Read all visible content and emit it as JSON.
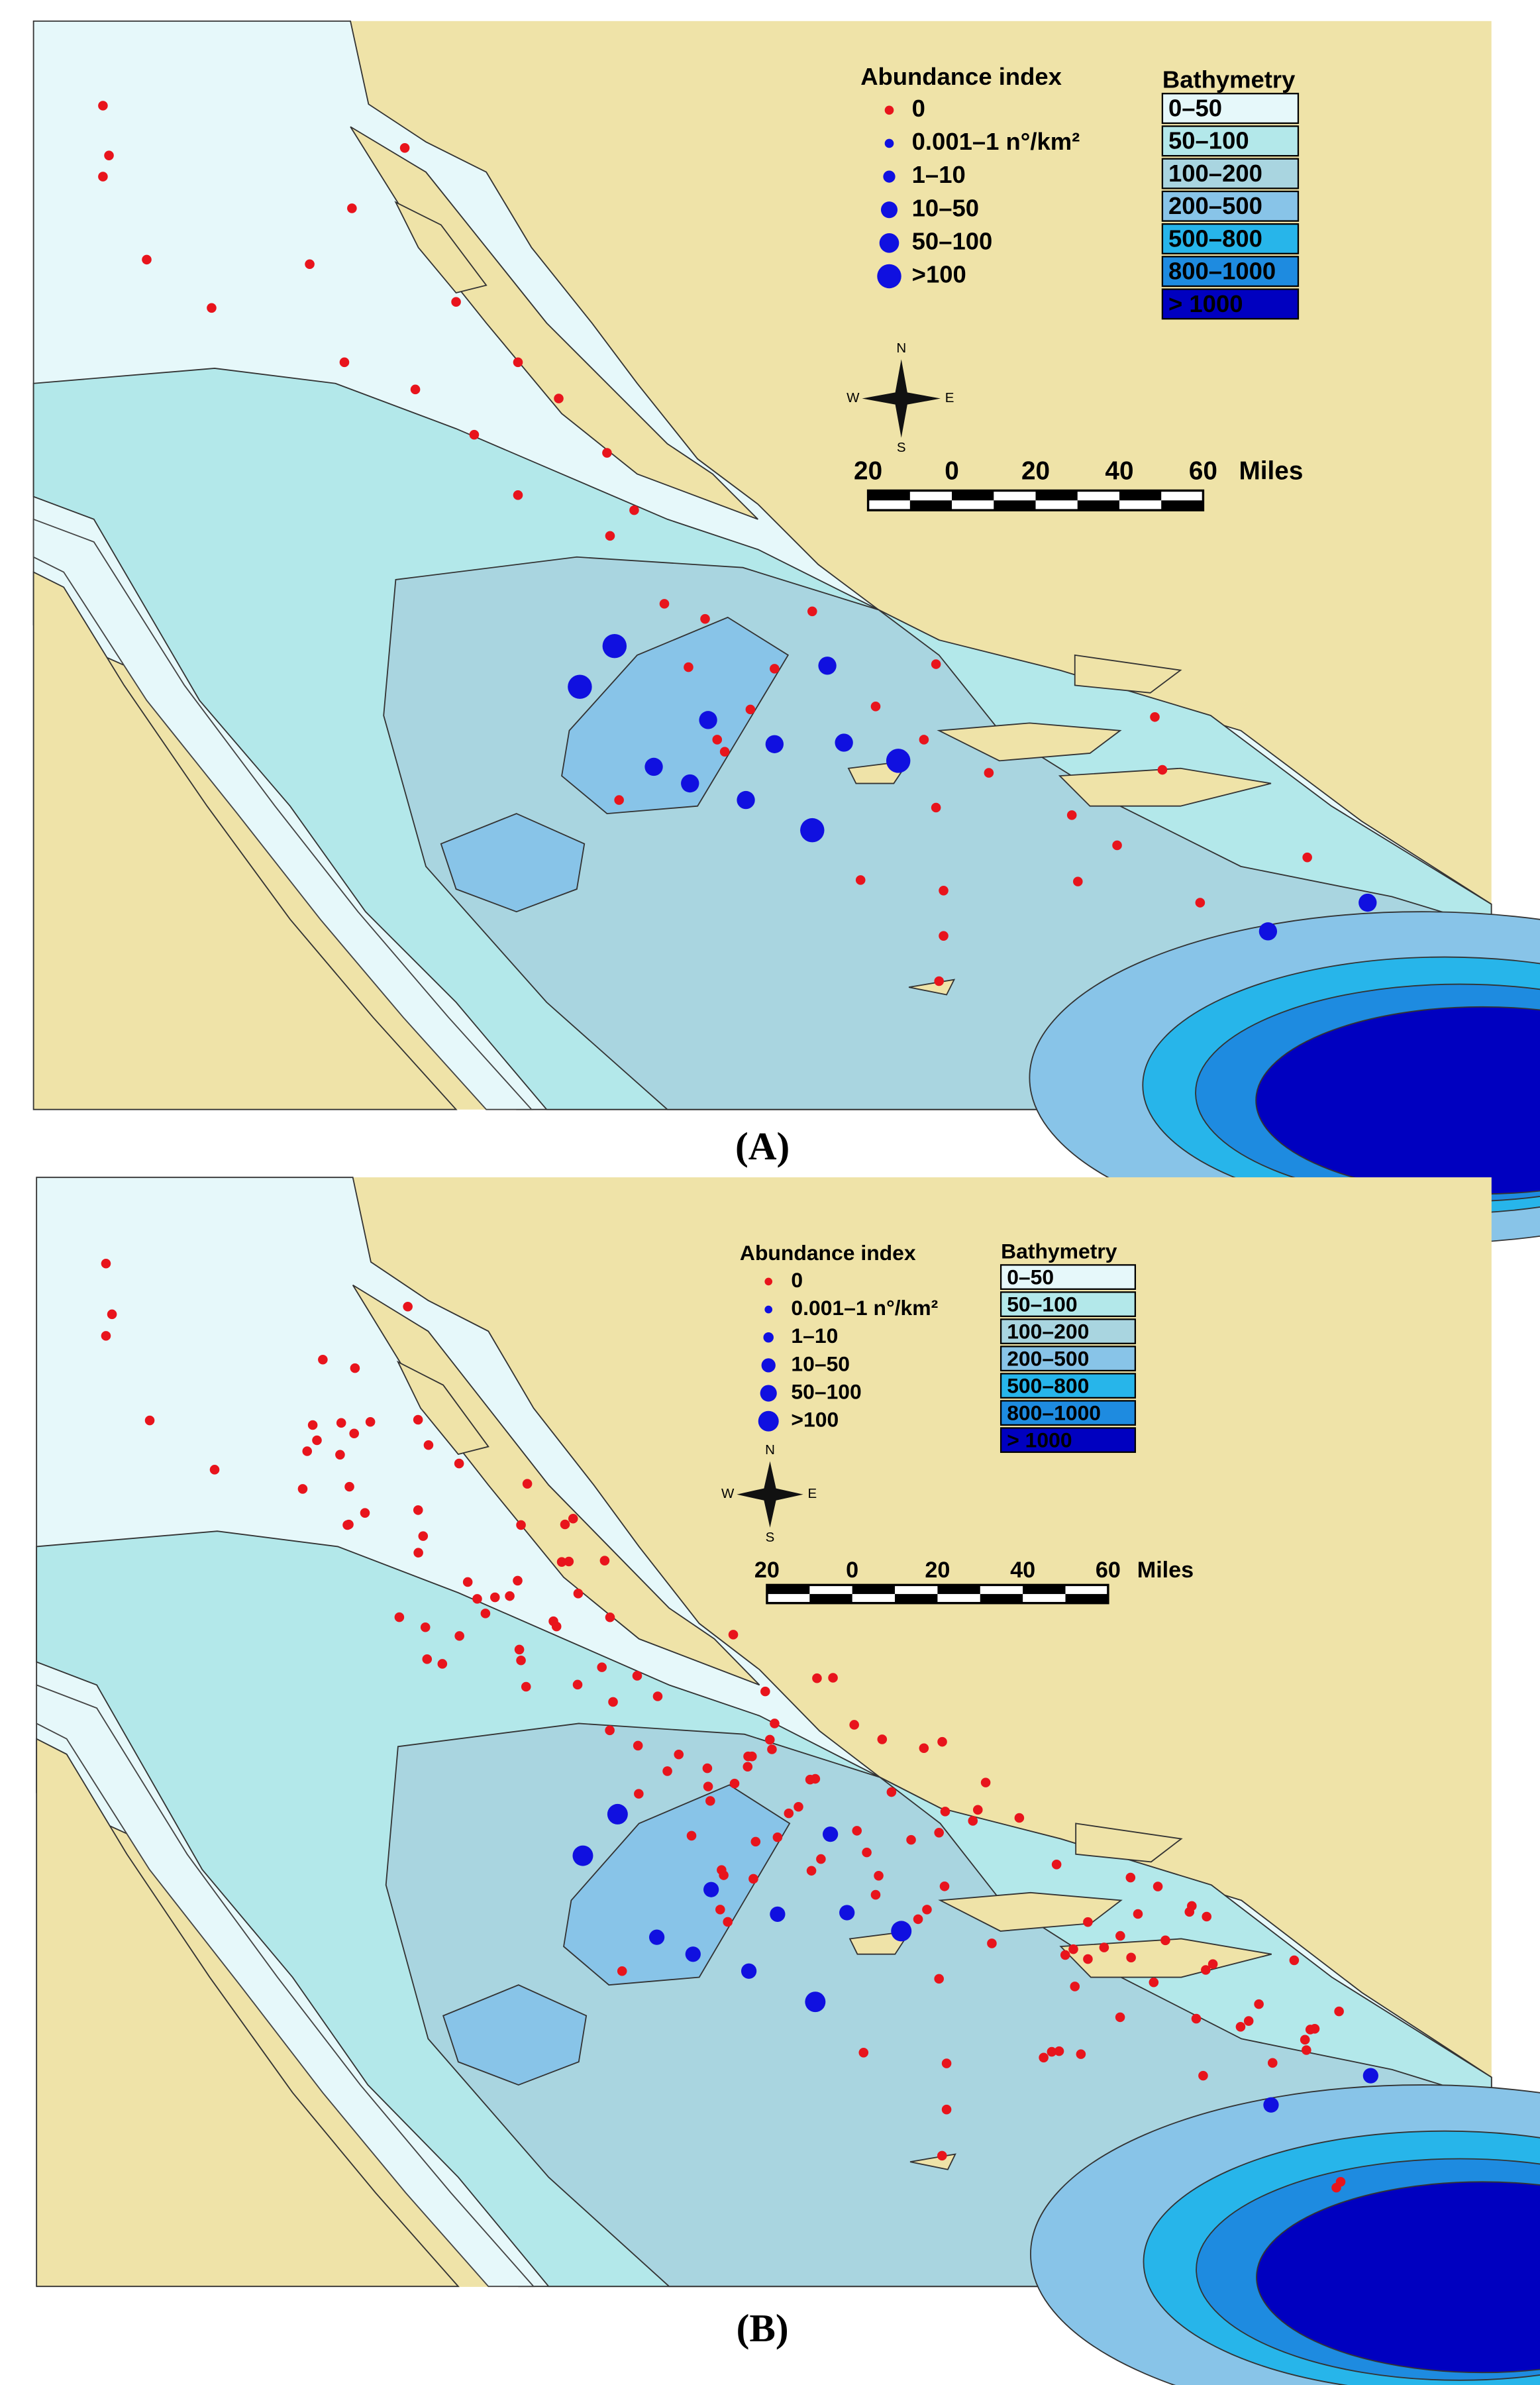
{
  "panels": [
    {
      "caption": "(A)",
      "abundance_legend": {
        "title": "Abundance index",
        "items": [
          "0",
          "0.001–1 n°/km²",
          "1–10",
          "10–50",
          "50–100",
          ">100"
        ]
      },
      "bathymetry_legend": {
        "title": "Bathymetry",
        "items": [
          "0–50",
          "50–100",
          "100–200",
          "200–500",
          "500–800",
          "800–1000",
          "> 1000"
        ]
      },
      "compass": {
        "north": "N",
        "south": "S",
        "west": "W",
        "east": "E"
      },
      "scale_bar": {
        "ticks": [
          "20",
          "0",
          "20",
          "40",
          "60"
        ],
        "unit": "Miles"
      }
    },
    {
      "caption": "(B)",
      "abundance_legend": {
        "title": "Abundance index",
        "items": [
          "0",
          "0.001–1 n°/km²",
          "1–10",
          "10–50",
          "50–100",
          ">100"
        ]
      },
      "bathymetry_legend": {
        "title": "Bathymetry",
        "items": [
          "0–50",
          "50–100",
          "100–200",
          "200–500",
          "500–800",
          "800–1000",
          "> 1000"
        ]
      },
      "compass": {
        "north": "N",
        "south": "S",
        "west": "W",
        "east": "E"
      },
      "scale_bar": {
        "ticks": [
          "20",
          "0",
          "20",
          "40",
          "60"
        ],
        "unit": "Miles"
      }
    }
  ]
}
